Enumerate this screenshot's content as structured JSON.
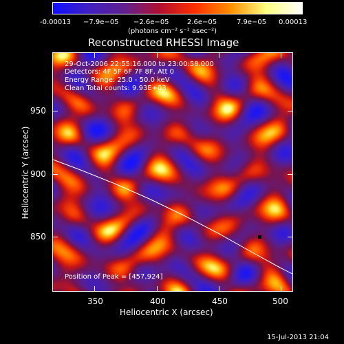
{
  "colorbar": {
    "tick_labels": [
      "-0.00013",
      "−7.9e−05",
      "−2.6e−05",
      "2.6e−05",
      "7.9e−05",
      "0.00013"
    ],
    "units": "(photons cm⁻² s⁻¹ asec⁻²)",
    "colors": [
      "#1010ff",
      "#4020c0",
      "#602090",
      "#b01030",
      "#ff3000",
      "#ff9000",
      "#ffff80",
      "#ffffff"
    ]
  },
  "title": "Reconstructed RHESSI Image",
  "info": {
    "line1": "29-Oct-2006 22:55:16.000 to 23:00:58.000",
    "line2": "Detectors: 4F 5F 6F 7F 8F, Att 0",
    "line3": "Energy Range: 25.0 - 50.0 keV",
    "line4": "Clean    Total counts: 9.93E+03"
  },
  "peak_text": "Position of Peak = [457,924]",
  "x_axis": {
    "label": "Heliocentric X (arcsec)",
    "ticks": [
      "350",
      "400",
      "450",
      "500"
    ]
  },
  "y_axis": {
    "label": "Heliocentric Y (arcsec)",
    "ticks": [
      "950",
      "900",
      "850"
    ]
  },
  "timestamp": "15-Jul-2013 21:04"
}
